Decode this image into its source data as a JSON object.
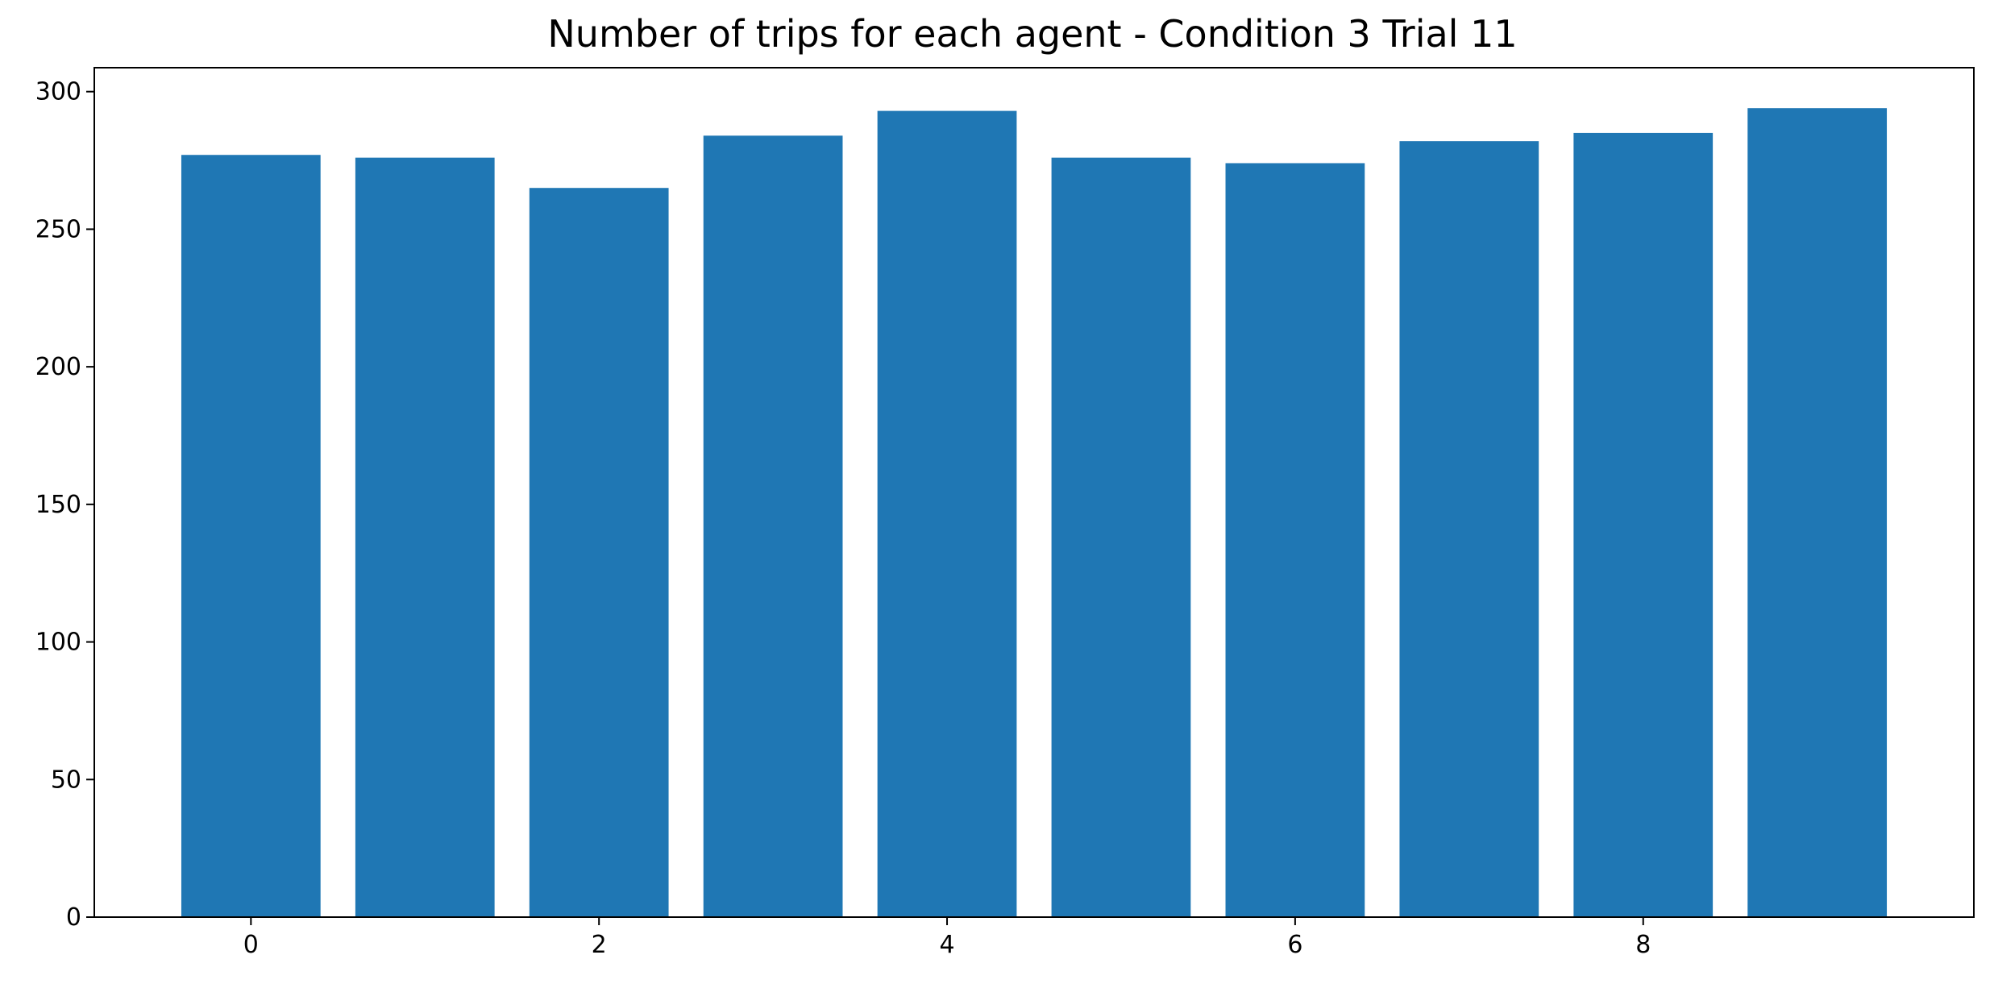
{
  "chart_data": {
    "type": "bar",
    "title": "Number of trips for each agent - Condition 3 Trial 11",
    "xlabel": "",
    "ylabel": "",
    "categories": [
      0,
      1,
      2,
      3,
      4,
      5,
      6,
      7,
      8,
      9
    ],
    "values": [
      277,
      276,
      265,
      284,
      293,
      276,
      274,
      282,
      285,
      294
    ],
    "xlim": [
      -0.9,
      9.9
    ],
    "ylim": [
      0,
      308.7
    ],
    "x_ticks": [
      0,
      2,
      4,
      6,
      8
    ],
    "x_tick_labels": [
      "0",
      "2",
      "4",
      "6",
      "8"
    ],
    "y_ticks": [
      0,
      50,
      100,
      150,
      200,
      250,
      300
    ],
    "y_tick_labels": [
      "0",
      "50",
      "100",
      "150",
      "200",
      "250",
      "300"
    ],
    "bar_color": "#1f77b4",
    "grid": false,
    "legend": "none"
  }
}
